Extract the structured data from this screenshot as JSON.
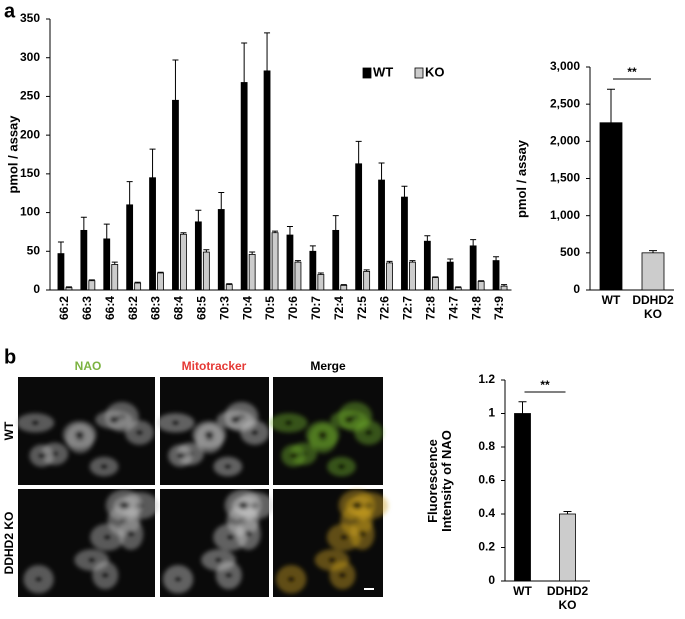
{
  "figure": {
    "panel_labels": [
      "a",
      "b"
    ],
    "image_columns": [
      "NAO",
      "Mitotracker",
      "Merge"
    ],
    "image_rows": [
      "WT",
      "DDHD2 KO"
    ]
  },
  "chart_data": [
    {
      "type": "bar",
      "ylabel": "pmol / assay",
      "categories": [
        "66:2",
        "66:3",
        "66:4",
        "68:2",
        "68:3",
        "68:4",
        "68:5",
        "70:3",
        "70:4",
        "70:5",
        "70:6",
        "70:7",
        "72:4",
        "72:5",
        "72:6",
        "72:7",
        "72:8",
        "74:7",
        "74:8",
        "74:9"
      ],
      "series": [
        {
          "name": "WT",
          "color": "#000000",
          "values": [
            47,
            77,
            66,
            110,
            145,
            245,
            88,
            104,
            268,
            283,
            71,
            50,
            77,
            163,
            142,
            120,
            63,
            36,
            57,
            38
          ],
          "errors": [
            15,
            17,
            19,
            30,
            37,
            52,
            15,
            22,
            51,
            49,
            11,
            7,
            19,
            29,
            22,
            14,
            7,
            4,
            8,
            5
          ]
        },
        {
          "name": "KO",
          "color": "#cccccc",
          "values": [
            3,
            12,
            33,
            9,
            22,
            72,
            49,
            7,
            46,
            74,
            36,
            20,
            6,
            24,
            35,
            36,
            16,
            3,
            11,
            5
          ],
          "errors": [
            1,
            1,
            3,
            1,
            1,
            2,
            3,
            1,
            3,
            2,
            2,
            2,
            1,
            2,
            2,
            2,
            1,
            1,
            1,
            2
          ]
        }
      ],
      "ylim": [
        0,
        350
      ],
      "yticks": [
        0,
        50,
        100,
        150,
        200,
        250,
        300,
        350
      ],
      "legend": "top-right"
    },
    {
      "type": "bar",
      "ylabel": "pmol / assay",
      "categories": [
        "WT",
        "DDHD2 KO"
      ],
      "values": [
        2250,
        500
      ],
      "errors": [
        450,
        30
      ],
      "colors": [
        "#000000",
        "#cccccc"
      ],
      "annotation": "**",
      "ylim": [
        0,
        3000
      ],
      "yticks": [
        0,
        {
          "value": 500,
          "label": "500"
        },
        {
          "value": 1000,
          "label": "1,000"
        },
        {
          "value": 1500,
          "label": "1,500"
        },
        {
          "value": 2000,
          "label": "2,000"
        },
        {
          "value": 2500,
          "label": "2,500"
        },
        {
          "value": 3000,
          "label": "3,000"
        }
      ]
    },
    {
      "type": "bar",
      "ylabel": "Fluorescence Intensity of NAO",
      "categories": [
        "WT",
        "DDHD2 KO"
      ],
      "values": [
        1,
        0.4
      ],
      "errors": [
        0.07,
        0.015
      ],
      "colors": [
        "#000000",
        "#cccccc"
      ],
      "annotation": "**",
      "ylim": [
        0,
        1.2
      ],
      "yticks": [
        0,
        0.2,
        0.4,
        0.6,
        0.8,
        1,
        1.2
      ]
    }
  ]
}
